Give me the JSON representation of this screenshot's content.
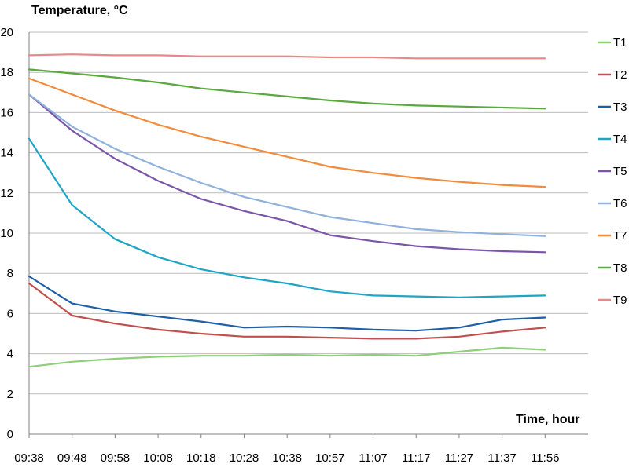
{
  "chart_data": {
    "type": "line",
    "ylabel": "Temperature, °C",
    "xlabel": "Time, hour",
    "ylim": [
      0,
      20
    ],
    "yticks": [
      0,
      2,
      4,
      6,
      8,
      10,
      12,
      14,
      16,
      18,
      20
    ],
    "xticks": [
      "09:38",
      "09:48",
      "09:58",
      "10:08",
      "10:18",
      "10:28",
      "10:38",
      "10:57",
      "11:07",
      "11:17",
      "11:27",
      "11:37",
      "11:56"
    ],
    "grid": true,
    "legend": "right",
    "series": [
      {
        "name": "T1",
        "color": "#8ed07a",
        "values": [
          3.35,
          3.6,
          3.75,
          3.85,
          3.9,
          3.9,
          3.95,
          3.9,
          3.95,
          3.9,
          4.1,
          4.3,
          4.2
        ]
      },
      {
        "name": "T2",
        "color": "#c0504d",
        "values": [
          7.5,
          5.9,
          5.5,
          5.2,
          5.0,
          4.85,
          4.85,
          4.8,
          4.75,
          4.75,
          4.85,
          5.1,
          5.3
        ]
      },
      {
        "name": "T3",
        "color": "#1f5fa8",
        "values": [
          7.85,
          6.5,
          6.1,
          5.85,
          5.6,
          5.3,
          5.35,
          5.3,
          5.2,
          5.15,
          5.3,
          5.7,
          5.8
        ]
      },
      {
        "name": "T4",
        "color": "#1ea5c6",
        "values": [
          14.7,
          11.4,
          9.7,
          8.8,
          8.2,
          7.8,
          7.5,
          7.1,
          6.9,
          6.85,
          6.8,
          6.85,
          6.9
        ]
      },
      {
        "name": "T5",
        "color": "#7b56a8",
        "values": [
          16.9,
          15.1,
          13.7,
          12.6,
          11.7,
          11.1,
          10.6,
          9.9,
          9.6,
          9.35,
          9.2,
          9.1,
          9.05
        ]
      },
      {
        "name": "T6",
        "color": "#8fb1dc",
        "values": [
          16.9,
          15.3,
          14.2,
          13.3,
          12.5,
          11.8,
          11.3,
          10.8,
          10.5,
          10.2,
          10.05,
          9.95,
          9.85
        ]
      },
      {
        "name": "T7",
        "color": "#f38b3d",
        "values": [
          17.7,
          16.9,
          16.1,
          15.4,
          14.8,
          14.3,
          13.8,
          13.3,
          13.0,
          12.75,
          12.55,
          12.4,
          12.3
        ]
      },
      {
        "name": "T8",
        "color": "#5aa83e",
        "values": [
          18.15,
          17.95,
          17.75,
          17.5,
          17.2,
          17.0,
          16.8,
          16.6,
          16.45,
          16.35,
          16.3,
          16.25,
          16.2
        ]
      },
      {
        "name": "T9",
        "color": "#e8888a",
        "values": [
          18.85,
          18.9,
          18.85,
          18.85,
          18.8,
          18.8,
          18.8,
          18.75,
          18.75,
          18.7,
          18.7,
          18.7,
          18.7
        ]
      }
    ]
  }
}
